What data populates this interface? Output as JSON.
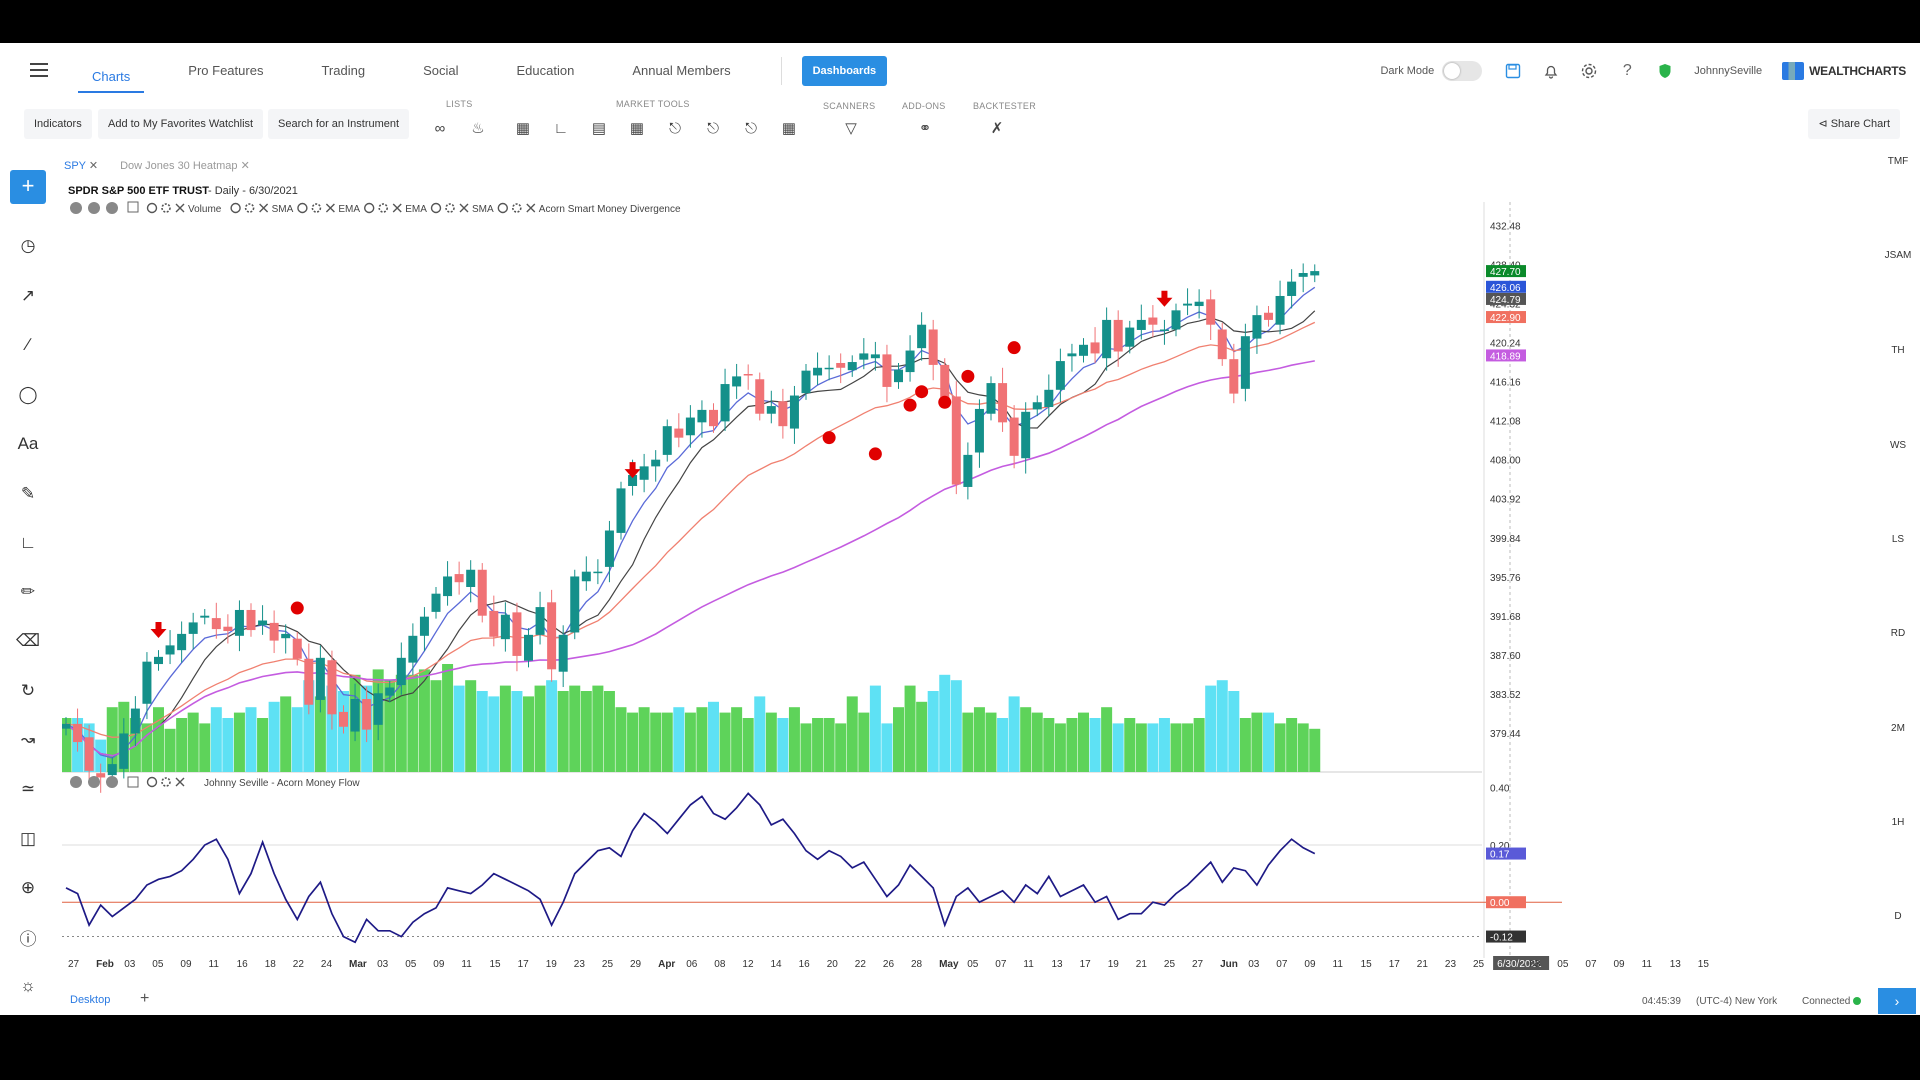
{
  "nav": {
    "tabs": [
      "Charts",
      "Pro Features",
      "Trading",
      "Social",
      "Education",
      "Annual Members"
    ],
    "dashboards_label": "Dashboards",
    "dark_mode_label": "Dark Mode",
    "username": "JohnnySeville",
    "brand": "WEALTHCHARTS"
  },
  "toolbar": {
    "indicators_label": "Indicators",
    "favorites_label": "Add to My Favorites Watchlist",
    "search_label": "Search for an Instrument",
    "groups": [
      "LISTS",
      "MARKET TOOLS",
      "SCANNERS",
      "ADD-ONS",
      "BACKTESTER"
    ],
    "share_label": "Share Chart"
  },
  "chart_tabs": [
    "SPY",
    "Dow Jones 30 Heatmap"
  ],
  "chart_header": {
    "title": "SPDR S&P 500 ETF TRUST",
    "interval": "- Daily - 6/30/2021",
    "indicators": [
      "Volume",
      "SMA",
      "EMA",
      "EMA",
      "SMA",
      "Acorn Smart Money Divergence"
    ],
    "lower_title": "Johnny Seville - Acorn Money Flow"
  },
  "right_panel": [
    "TMF",
    "JSAM",
    "TH",
    "WS",
    "LS",
    "RD",
    "2M",
    "1H",
    "D"
  ],
  "status": {
    "desktop_tab": "Desktop",
    "time": "04:45:39",
    "timezone": "(UTC-4) New York",
    "connection": "Connected"
  },
  "colors": {
    "accent": "#2a8ee2",
    "up": "#14908a",
    "down": "#f07275",
    "vol_up": "#5ed35a",
    "vol_down": "#5ee1f4",
    "signal": "#e00000",
    "money_flow": "#1e1a86"
  },
  "chart_data": {
    "type": "candlestick",
    "price_axis": [
      432.48,
      428.4,
      424.32,
      420.24,
      416.16,
      412.08,
      408.0,
      403.92,
      399.84,
      395.76,
      391.68,
      387.6,
      383.52,
      379.44
    ],
    "price_tags": [
      {
        "value": 427.7,
        "color": "#0a8a2a"
      },
      {
        "value": 426.06,
        "color": "#2a55d8"
      },
      {
        "value": 424.79,
        "color": "#555555"
      },
      {
        "value": 422.9,
        "color": "#f07060"
      },
      {
        "value": 418.89,
        "color": "#c45ce0"
      }
    ],
    "x_labels": [
      "27",
      "Feb",
      "03",
      "05",
      "09",
      "11",
      "16",
      "18",
      "22",
      "24",
      "Mar",
      "03",
      "05",
      "09",
      "11",
      "15",
      "17",
      "19",
      "23",
      "25",
      "29",
      "Apr",
      "06",
      "08",
      "12",
      "14",
      "16",
      "20",
      "22",
      "26",
      "28",
      "May",
      "05",
      "07",
      "11",
      "13",
      "17",
      "19",
      "21",
      "25",
      "27",
      "Jun",
      "03",
      "07",
      "09",
      "11",
      "15",
      "17",
      "21",
      "23",
      "25",
      "6/30/2021",
      "03",
      "05",
      "07",
      "09",
      "11",
      "13",
      "15"
    ],
    "close": [
      380.4,
      378.5,
      375.5,
      374.8,
      376.2,
      379.4,
      382.0,
      386.9,
      387.4,
      388.6,
      389.8,
      391.0,
      391.7,
      390.3,
      390.1,
      392.3,
      390.2,
      391.2,
      389.1,
      389.8,
      387.2,
      382.4,
      387.3,
      381.4,
      380.1,
      383.0,
      379.8,
      383.6,
      384.2,
      387.3,
      389.6,
      391.6,
      394.0,
      395.8,
      395.2,
      396.5,
      391.7,
      389.5,
      391.8,
      387.5,
      389.7,
      392.6,
      386.1,
      389.7,
      395.8,
      396.3,
      396.3,
      400.6,
      405.0,
      406.4,
      407.3,
      408.0,
      411.5,
      410.3,
      412.4,
      413.2,
      411.5,
      415.9,
      416.7,
      416.9,
      412.8,
      413.6,
      411.5,
      414.7,
      417.3,
      417.6,
      417.6,
      417.6,
      418.2,
      419.1,
      419.0,
      415.6,
      417.4,
      419.4,
      422.1,
      417.9,
      414.1,
      405.4,
      408.5,
      413.3,
      416.0,
      411.9,
      408.4,
      413.0,
      414.0,
      415.3,
      418.3,
      419.1,
      420.0,
      419.1,
      422.6,
      419.3,
      421.8,
      422.6,
      422.1,
      421.6,
      423.6,
      424.3,
      424.5,
      422.1,
      418.5,
      414.9,
      420.9,
      423.1,
      422.6,
      425.1,
      426.6,
      427.5,
      427.7
    ],
    "volume_relative": [
      0.5,
      0.5,
      0.45,
      0.3,
      0.6,
      0.65,
      0.5,
      0.45,
      0.6,
      0.4,
      0.5,
      0.55,
      0.45,
      0.6,
      0.5,
      0.55,
      0.6,
      0.5,
      0.65,
      0.7,
      0.6,
      0.85,
      0.7,
      0.8,
      0.75,
      0.9,
      0.8,
      0.95,
      0.85,
      0.9,
      0.9,
      0.95,
      0.85,
      1.0,
      0.8,
      0.85,
      0.75,
      0.7,
      0.8,
      0.75,
      0.7,
      0.8,
      0.85,
      0.75,
      0.8,
      0.75,
      0.8,
      0.75,
      0.6,
      0.55,
      0.6,
      0.55,
      0.55,
      0.6,
      0.55,
      0.6,
      0.65,
      0.55,
      0.6,
      0.5,
      0.7,
      0.55,
      0.5,
      0.6,
      0.45,
      0.5,
      0.5,
      0.45,
      0.7,
      0.55,
      0.8,
      0.45,
      0.6,
      0.8,
      0.65,
      0.75,
      0.9,
      0.85,
      0.55,
      0.6,
      0.55,
      0.5,
      0.7,
      0.6,
      0.55,
      0.5,
      0.45,
      0.5,
      0.55,
      0.5,
      0.6,
      0.45,
      0.5,
      0.45,
      0.45,
      0.5,
      0.45,
      0.45,
      0.5,
      0.8,
      0.85,
      0.75,
      0.5,
      0.55,
      0.55,
      0.45,
      0.5,
      0.45,
      0.4
    ],
    "signal_dots": [
      {
        "i": 20,
        "price": 392.5
      },
      {
        "i": 66,
        "price": 410.3
      },
      {
        "i": 70,
        "price": 408.6
      },
      {
        "i": 73,
        "price": 413.7
      },
      {
        "i": 74,
        "price": 415.1
      },
      {
        "i": 76,
        "price": 414.0
      },
      {
        "i": 78,
        "price": 416.7
      },
      {
        "i": 82,
        "price": 419.7
      }
    ],
    "signal_arrows": [
      {
        "i": 8,
        "price": 390.0
      },
      {
        "i": 49,
        "price": 406.7
      },
      {
        "i": 95,
        "price": 424.6
      }
    ],
    "money_flow_axis": [
      0.4,
      0.2,
      0.17,
      0.0,
      -0.12
    ],
    "money_flow": [
      0.05,
      0.03,
      -0.08,
      -0.01,
      -0.05,
      -0.02,
      0.01,
      0.06,
      0.08,
      0.09,
      0.11,
      0.15,
      0.2,
      0.22,
      0.15,
      0.03,
      0.1,
      0.21,
      0.1,
      0.01,
      -0.06,
      0.02,
      0.07,
      -0.04,
      -0.12,
      -0.14,
      -0.06,
      -0.1,
      -0.1,
      -0.12,
      -0.07,
      -0.04,
      -0.02,
      0.05,
      0.04,
      0.03,
      0.06,
      0.1,
      0.08,
      0.06,
      0.04,
      0.01,
      -0.08,
      0.0,
      0.1,
      0.14,
      0.18,
      0.19,
      0.16,
      0.25,
      0.31,
      0.28,
      0.24,
      0.29,
      0.34,
      0.37,
      0.31,
      0.29,
      0.33,
      0.38,
      0.34,
      0.27,
      0.29,
      0.24,
      0.18,
      0.15,
      0.18,
      0.16,
      0.12,
      0.14,
      0.08,
      0.02,
      0.06,
      0.13,
      0.09,
      0.05,
      -0.08,
      0.02,
      0.05,
      0.0,
      0.02,
      0.04,
      0.0,
      0.06,
      0.03,
      0.09,
      0.02,
      0.04,
      0.06,
      0.0,
      0.02,
      -0.06,
      -0.04,
      -0.04,
      0.0,
      -0.01,
      0.03,
      0.06,
      0.1,
      0.14,
      0.07,
      0.12,
      0.11,
      0.06,
      0.13,
      0.18,
      0.22,
      0.19,
      0.17
    ]
  }
}
